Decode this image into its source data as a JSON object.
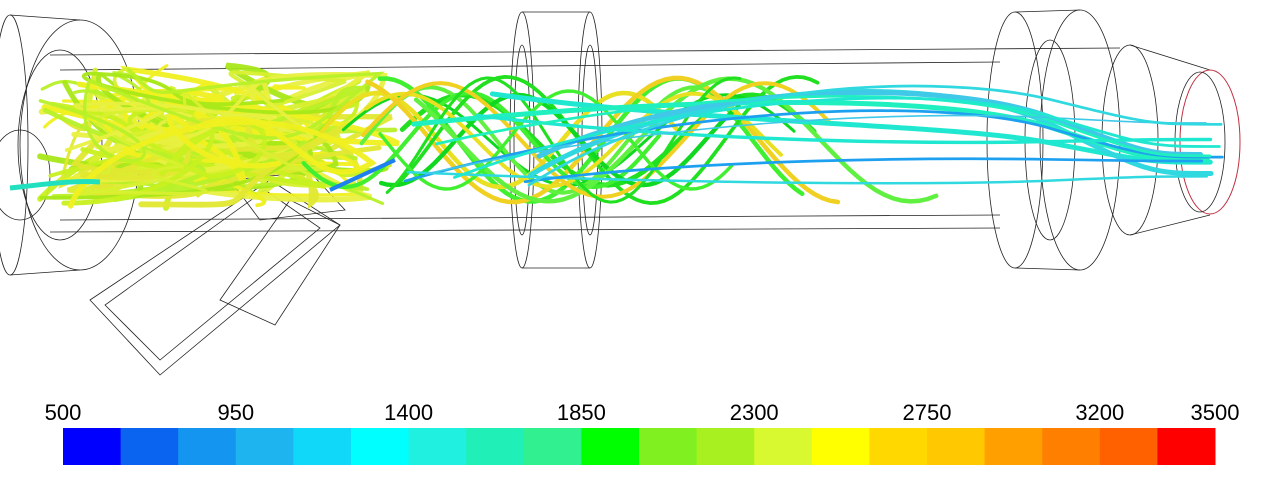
{
  "colorbar": {
    "ticks": [
      500,
      950,
      1400,
      1850,
      2300,
      2750,
      3200,
      3500
    ],
    "colors": [
      "#0000ff",
      "#0a64f0",
      "#1496f0",
      "#1eb4f0",
      "#10d8f8",
      "#00ffff",
      "#20f0e0",
      "#20f0b8",
      "#30f090",
      "#00ff00",
      "#80f020",
      "#a8f020",
      "#d8f830",
      "#ffff00",
      "#ffd800",
      "#ffc800",
      "#ffa000",
      "#ff8000",
      "#ff6000",
      "#ff0000"
    ]
  }
}
